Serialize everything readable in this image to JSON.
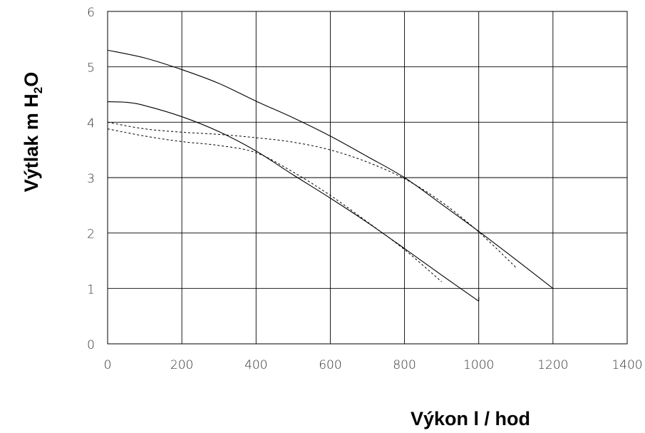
{
  "chart_data": {
    "type": "line",
    "xlabel": "Výkon l / hod",
    "ylabel_main": "Výtlak m H",
    "ylabel_sub": "2",
    "ylabel_end": "O",
    "xlim": [
      0,
      1400
    ],
    "ylim": [
      0,
      6
    ],
    "x_ticks": [
      0,
      200,
      400,
      600,
      800,
      1000,
      1200,
      1400
    ],
    "y_ticks": [
      0,
      1,
      2,
      3,
      4,
      5,
      6
    ],
    "grid": true,
    "series": [
      {
        "style": "solid",
        "x": [
          0,
          100,
          200,
          300,
          400,
          500,
          600,
          700,
          800,
          900,
          1000,
          1100,
          1200
        ],
        "y": [
          5.3,
          5.16,
          4.95,
          4.7,
          4.38,
          4.08,
          3.75,
          3.38,
          3.0,
          2.52,
          2.03,
          1.52,
          1.0
        ]
      },
      {
        "style": "solid",
        "x": [
          0,
          50,
          100,
          200,
          300,
          400,
          500,
          600,
          700,
          800,
          900,
          1000
        ],
        "y": [
          4.37,
          4.36,
          4.3,
          4.1,
          3.83,
          3.48,
          3.05,
          2.63,
          2.19,
          1.72,
          1.24,
          0.77
        ]
      },
      {
        "style": "dashed",
        "x": [
          0,
          100,
          200,
          300,
          400,
          500,
          600,
          700,
          800,
          900,
          1000,
          1100
        ],
        "y": [
          4.0,
          3.88,
          3.82,
          3.78,
          3.72,
          3.64,
          3.5,
          3.28,
          2.98,
          2.56,
          2.02,
          1.38
        ]
      },
      {
        "style": "dashed",
        "x": [
          0,
          100,
          200,
          300,
          400,
          500,
          600,
          700,
          800,
          900
        ],
        "y": [
          3.88,
          3.75,
          3.65,
          3.58,
          3.45,
          3.1,
          2.68,
          2.2,
          1.7,
          1.12
        ]
      }
    ]
  }
}
